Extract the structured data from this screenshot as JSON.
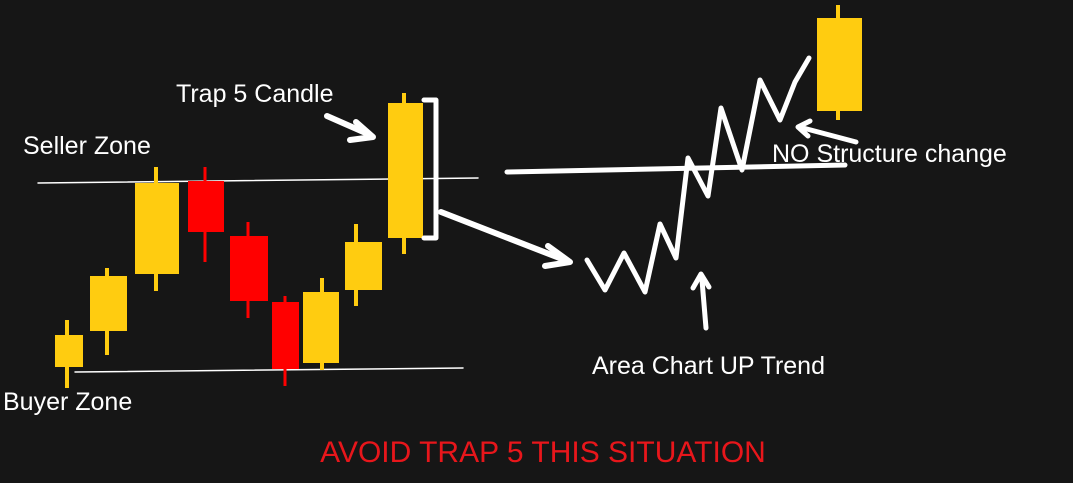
{
  "labels": {
    "trap_candle": "Trap 5 Candle",
    "seller_zone": "Seller Zone",
    "buyer_zone": "Buyer Zone",
    "structure": "NO Structure change",
    "area_chart": "Area Chart UP Trend"
  },
  "warning": "AVOID TRAP 5 THIS SITUATION"
}
